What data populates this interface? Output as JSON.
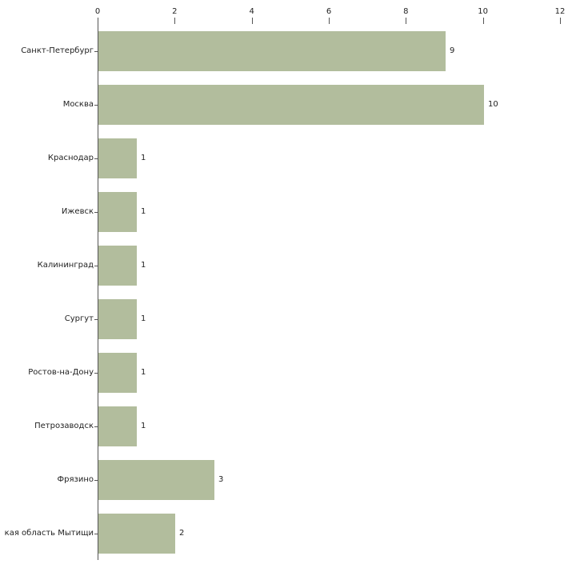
{
  "chart_data": {
    "type": "bar",
    "orientation": "horizontal",
    "title": "",
    "xlabel": "",
    "ylabel": "",
    "categories": [
      "Санкт-Петербург",
      "Москва",
      "Краснодар",
      "Ижевск",
      "Калининград",
      "Сургут",
      "Ростов-на-Дону",
      "Петрозаводск",
      "Фрязино",
      "кая область Мытищи"
    ],
    "values": [
      9,
      10,
      1,
      1,
      1,
      1,
      1,
      1,
      3,
      2
    ],
    "value_labels": [
      "9",
      "10",
      "1",
      "1",
      "1",
      "1",
      "1",
      "1",
      "3",
      "2"
    ],
    "xlim": [
      0,
      12
    ],
    "xticks": [
      0,
      2,
      4,
      6,
      8,
      10,
      12
    ],
    "grid": false,
    "legend": false,
    "bar_color": "#b2bd9d",
    "axis_color": "#555555",
    "text_color": "#222222",
    "background_color": "#ffffff"
  }
}
